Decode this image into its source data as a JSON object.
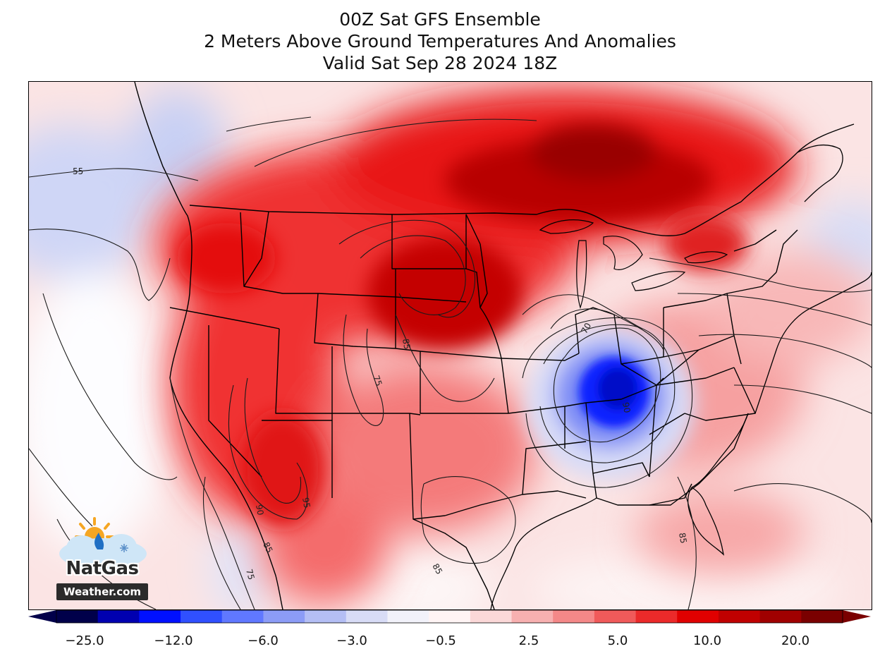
{
  "title": {
    "line1": "00Z Sat GFS Ensemble",
    "line2": "2 Meters Above Ground Temperatures And Anomalies",
    "line3": "Valid Sat Sep 28 2024 18Z"
  },
  "colorbar": {
    "ticks": [
      "−25.0",
      "−12.0",
      "−6.0",
      "−3.0",
      "−0.5",
      "2.5",
      "5.0",
      "10.0",
      "20.0"
    ],
    "cold_colors": [
      "#00004a",
      "#0000b0",
      "#0010ff",
      "#3050ff",
      "#6078ff",
      "#8c9cf6",
      "#b4bef4",
      "#d8dcf6",
      "#f2f2fa"
    ],
    "warm_colors": [
      "#fff4f4",
      "#fbd8d8",
      "#f7b0b0",
      "#f48888",
      "#f05a5a",
      "#eb2a2a",
      "#e00000",
      "#c00000",
      "#a00000",
      "#7a0000"
    ]
  },
  "contours": {
    "labels": [
      "55",
      "70",
      "75",
      "85",
      "90",
      "90",
      "95",
      "85",
      "75",
      "85",
      "85",
      "80"
    ]
  },
  "logo": {
    "name": "NatGas",
    "site": "Weather.com"
  }
}
